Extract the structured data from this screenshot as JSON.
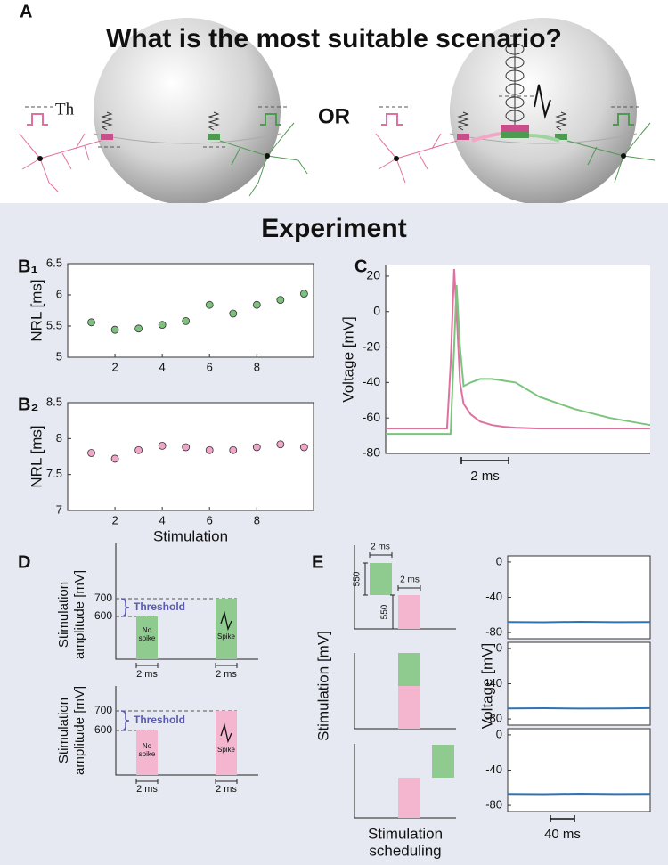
{
  "panel_a": {
    "label": "A",
    "title": "What is the most suitable scenario?",
    "threshold": "Th",
    "or": "OR"
  },
  "experiment": "Experiment",
  "chart_data": [
    {
      "type": "scatter",
      "label": "B₁",
      "y_label": "NRL [ms]",
      "color": "#7ec07e",
      "x": [
        1,
        2,
        3,
        4,
        5,
        6,
        7,
        8,
        9,
        10
      ],
      "values": [
        5.56,
        5.44,
        5.46,
        5.52,
        5.58,
        5.84,
        5.7,
        5.84,
        5.92,
        6.02
      ],
      "xlim": [
        0,
        10.4
      ],
      "ylim": [
        5,
        6.5
      ],
      "xticks": [
        2,
        4,
        6,
        8
      ],
      "yticks": [
        5,
        5.5,
        6,
        6.5
      ]
    },
    {
      "type": "scatter",
      "label": "B₂",
      "y_label": "NRL [ms]",
      "x_label": "Stimulation",
      "color": "#f0a6c8",
      "x": [
        1,
        2,
        3,
        4,
        5,
        6,
        7,
        8,
        9,
        10
      ],
      "values": [
        7.8,
        7.72,
        7.84,
        7.9,
        7.88,
        7.84,
        7.84,
        7.88,
        7.92,
        7.88
      ],
      "xlim": [
        0,
        10.4
      ],
      "ylim": [
        7,
        8.5
      ],
      "xticks": [
        2,
        4,
        6,
        8
      ],
      "yticks": [
        7,
        7.5,
        8,
        8.5
      ]
    },
    {
      "type": "line",
      "label": "C",
      "y_label": "Voltage [mV]",
      "x": [
        0,
        2.6,
        2.75,
        2.9,
        3.0,
        3.15,
        3.3,
        3.6,
        4.0,
        4.5,
        5.0,
        5.5,
        6.5,
        8,
        9.5,
        11.2
      ],
      "series": [
        {
          "color": "#e0719f",
          "values": [
            -66,
            -66,
            -30,
            24,
            0,
            -40,
            -52,
            -58,
            -62,
            -64,
            -65,
            -65.5,
            -66,
            -66,
            -66,
            -66
          ]
        },
        {
          "color": "#7cc47e",
          "values": [
            -69,
            -69,
            -69,
            -20,
            15,
            -20,
            -42,
            -40,
            -38,
            -38,
            -39,
            -40,
            -48,
            -55,
            -60,
            -64
          ]
        }
      ],
      "xlim": [
        0,
        11.2
      ],
      "ylim": [
        -80,
        26
      ],
      "yticks": [
        20,
        0,
        -20,
        -40,
        -60,
        -80
      ],
      "scale_bar": {
        "value": 2,
        "label": "2 ms"
      }
    },
    {
      "type": "line",
      "x": [
        0,
        60,
        120,
        180,
        237
      ],
      "series": [
        {
          "color": "#2f73b5",
          "values": [
            -68,
            -68.3,
            -67.8,
            -68.2,
            -68
          ]
        }
      ],
      "xlim": [
        0,
        237
      ],
      "ylim": [
        -87,
        7
      ],
      "yticks": [
        0,
        -40,
        -80
      ]
    },
    {
      "type": "line",
      "y_label": "Voltage [mV]",
      "x": [
        0,
        60,
        120,
        180,
        237
      ],
      "series": [
        {
          "color": "#2f73b5",
          "values": [
            -68,
            -67.8,
            -68.2,
            -68,
            -67.7
          ]
        }
      ],
      "xlim": [
        0,
        237
      ],
      "ylim": [
        -87,
        7
      ],
      "yticks": [
        0,
        -40,
        -80
      ]
    },
    {
      "type": "line",
      "x": [
        0,
        60,
        120,
        180,
        237
      ],
      "series": [
        {
          "color": "#2f73b5",
          "values": [
            -67,
            -67.3,
            -66.8,
            -67.2,
            -67
          ]
        }
      ],
      "xlim": [
        0,
        237
      ],
      "ylim": [
        -87,
        7
      ],
      "yticks": [
        0,
        -40,
        -80
      ],
      "scale_bar": {
        "value": 40,
        "label": "40 ms"
      }
    }
  ],
  "panel_d": {
    "label": "D",
    "diagrams": [
      {
        "y_label": [
          "Stimulation",
          "amplitude [mV]"
        ],
        "levels": [
          700,
          600
        ],
        "threshold": "Threshold",
        "no_spike": [
          "No",
          "spike"
        ],
        "spike": "Spike",
        "durations": [
          "2 ms",
          "2 ms"
        ]
      },
      {
        "y_label": [
          "Stimulation",
          "amplitude [mV]"
        ],
        "levels": [
          700,
          600
        ],
        "threshold": "Threshold",
        "no_spike": [
          "No",
          "spike"
        ],
        "spike": "Spike",
        "durations": [
          "2 ms",
          "2 ms"
        ]
      }
    ]
  },
  "panel_e": {
    "label": "E",
    "y_label": "Stimulation [mV]",
    "x_label": [
      "Stimulation",
      "scheduling"
    ],
    "durations": [
      "2 ms",
      "2 ms"
    ],
    "amplitudes": [
      550,
      550
    ]
  }
}
